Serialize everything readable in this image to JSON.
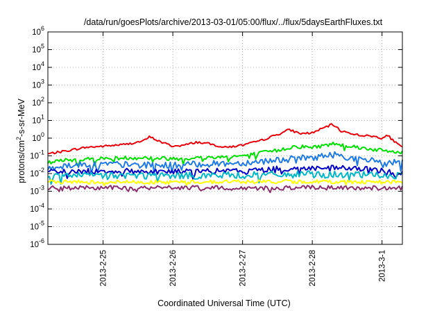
{
  "chart_data": {
    "type": "line",
    "title": "/data/run/goesPlots/archive/2013-03-01/05:00/flux/../flux/5daysEarthFluxes.txt",
    "xlabel": "Coordinated Universal Time (UTC)",
    "ylabel": "protons/cm²-s-sr-MeV",
    "ylabel_parts": {
      "pre": "protons/cm",
      "sup": "2",
      "post": "-s-sr-MeV"
    },
    "y_scale": "log",
    "ylim": [
      1e-06,
      1000000.0
    ],
    "xlim": [
      "2013-02-24 05:00",
      "2013-03-01 07:00"
    ],
    "x_ticks": [
      {
        "label": "2013-2-25",
        "t": "2013-02-25 00:00"
      },
      {
        "label": "2013-2-26",
        "t": "2013-02-26 00:00"
      },
      {
        "label": "2013-2-27",
        "t": "2013-02-27 00:00"
      },
      {
        "label": "2013-2-28",
        "t": "2013-02-28 00:00"
      },
      {
        "label": "2013-3-1",
        "t": "2013-03-01 00:00"
      }
    ],
    "y_ticks": [
      {
        "base": "10",
        "exp": "-6",
        "value": 1e-06
      },
      {
        "base": "10",
        "exp": "-5",
        "value": 1e-05
      },
      {
        "base": "10",
        "exp": "-4",
        "value": 0.0001
      },
      {
        "base": "10",
        "exp": "-3",
        "value": 0.001
      },
      {
        "base": "10",
        "exp": "-2",
        "value": 0.01
      },
      {
        "base": "10",
        "exp": "-1",
        "value": 0.1
      },
      {
        "base": "10",
        "exp": "0",
        "value": 1
      },
      {
        "base": "10",
        "exp": "1",
        "value": 10
      },
      {
        "base": "10",
        "exp": "2",
        "value": 100
      },
      {
        "base": "10",
        "exp": "3",
        "value": 1000
      },
      {
        "base": "10",
        "exp": "4",
        "value": 10000
      },
      {
        "base": "10",
        "exp": "5",
        "value": 100000
      },
      {
        "base": "10",
        "exp": "6",
        "value": 1000000
      }
    ],
    "grid": "dotted",
    "series": [
      {
        "color": "#e8000b",
        "noise": 0.06,
        "x": [
          "2013-02-24 05:00",
          "2013-02-24 12:00",
          "2013-02-24 18:00",
          "2013-02-25 00:00",
          "2013-02-25 08:00",
          "2013-02-25 14:00",
          "2013-02-25 16:00",
          "2013-02-25 20:00",
          "2013-02-26 00:00",
          "2013-02-26 04:00",
          "2013-02-26 08:00",
          "2013-02-26 12:00",
          "2013-02-26 18:00",
          "2013-02-27 00:00",
          "2013-02-27 06:00",
          "2013-02-27 12:00",
          "2013-02-27 16:00",
          "2013-02-27 20:00",
          "2013-02-28 00:00",
          "2013-02-28 05:00",
          "2013-02-28 07:00",
          "2013-02-28 10:00",
          "2013-02-28 16:00",
          "2013-02-28 22:00",
          "2013-03-01 00:00",
          "2013-03-01 02:00",
          "2013-03-01 05:00",
          "2013-03-01 07:00"
        ],
        "y": [
          0.13,
          0.2,
          0.3,
          0.35,
          0.45,
          0.7,
          1.2,
          0.6,
          0.35,
          0.4,
          0.6,
          0.5,
          0.3,
          0.4,
          0.7,
          1.6,
          3.0,
          1.8,
          2.0,
          4.5,
          6.0,
          2.5,
          1.5,
          1.2,
          1.0,
          1.4,
          0.5,
          0.3
        ]
      },
      {
        "color": "#00e000",
        "noise": 0.09,
        "x": [
          "2013-02-24 05:00",
          "2013-02-24 12:00",
          "2013-02-25 00:00",
          "2013-02-25 12:00",
          "2013-02-26 00:00",
          "2013-02-26 12:00",
          "2013-02-27 00:00",
          "2013-02-27 12:00",
          "2013-02-27 18:00",
          "2013-02-28 00:00",
          "2013-02-28 08:00",
          "2013-02-28 16:00",
          "2013-03-01 00:00",
          "2013-03-01 07:00"
        ],
        "y": [
          0.04,
          0.06,
          0.07,
          0.08,
          0.07,
          0.08,
          0.1,
          0.2,
          0.35,
          0.3,
          0.5,
          0.3,
          0.2,
          0.15
        ]
      },
      {
        "color": "#1e7ae6",
        "noise": 0.12,
        "x": [
          "2013-02-24 05:00",
          "2013-02-24 12:00",
          "2013-02-25 00:00",
          "2013-02-25 12:00",
          "2013-02-26 00:00",
          "2013-02-26 12:00",
          "2013-02-27 00:00",
          "2013-02-27 12:00",
          "2013-02-27 18:00",
          "2013-02-28 00:00",
          "2013-02-28 08:00",
          "2013-02-28 16:00",
          "2013-03-01 00:00",
          "2013-03-01 07:00"
        ],
        "y": [
          0.02,
          0.03,
          0.035,
          0.03,
          0.03,
          0.035,
          0.04,
          0.06,
          0.07,
          0.08,
          0.12,
          0.06,
          0.05,
          0.04
        ]
      },
      {
        "color": "#0000c8",
        "noise": 0.09,
        "x": [
          "2013-02-24 05:00",
          "2013-02-25 00:00",
          "2013-02-26 00:00",
          "2013-02-27 00:00",
          "2013-02-27 12:00",
          "2013-02-28 00:00",
          "2013-02-28 12:00",
          "2013-03-01 00:00",
          "2013-03-01 07:00"
        ],
        "y": [
          0.012,
          0.014,
          0.013,
          0.014,
          0.018,
          0.02,
          0.02,
          0.015,
          0.01
        ]
      },
      {
        "color": "#00b8c8",
        "noise": 0.1,
        "x": [
          "2013-02-24 05:00",
          "2013-02-25 00:00",
          "2013-02-26 00:00",
          "2013-02-27 00:00",
          "2013-02-28 00:00",
          "2013-03-01 00:00",
          "2013-03-01 07:00"
        ],
        "y": [
          0.007,
          0.008,
          0.0075,
          0.008,
          0.009,
          0.008,
          0.007
        ]
      },
      {
        "color": "#ffff00",
        "noise": 0.05,
        "x": [
          "2013-02-24 05:00",
          "2013-02-25 00:00",
          "2013-02-26 00:00",
          "2013-02-27 00:00",
          "2013-02-28 00:00",
          "2013-03-01 00:00",
          "2013-03-01 07:00"
        ],
        "y": [
          0.0035,
          0.0033,
          0.0033,
          0.0035,
          0.0035,
          0.0034,
          0.0033
        ]
      },
      {
        "color": "#8b2e6e",
        "noise": 0.05,
        "x": [
          "2013-02-24 05:00",
          "2013-02-25 00:00",
          "2013-02-25 12:00",
          "2013-02-26 00:00",
          "2013-02-27 00:00",
          "2013-02-28 00:00",
          "2013-03-01 00:00",
          "2013-03-01 07:00"
        ],
        "y": [
          0.0015,
          0.0016,
          0.0015,
          0.0016,
          0.0015,
          0.0016,
          0.0015,
          0.0015
        ]
      }
    ]
  }
}
